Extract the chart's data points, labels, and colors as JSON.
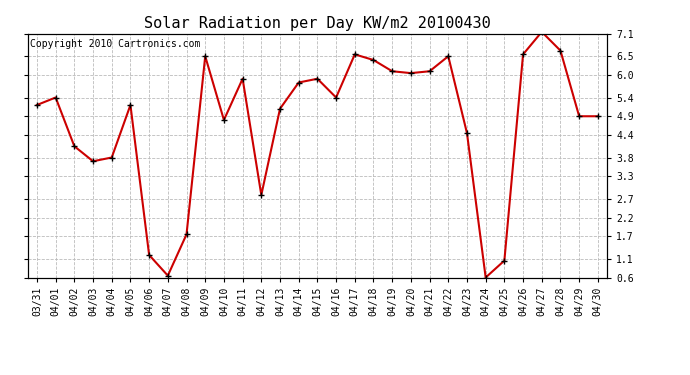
{
  "title": "Solar Radiation per Day KW/m2 20100430",
  "copyright": "Copyright 2010 Cartronics.com",
  "labels": [
    "03/31",
    "04/01",
    "04/02",
    "04/03",
    "04/04",
    "04/05",
    "04/06",
    "04/07",
    "04/08",
    "04/09",
    "04/10",
    "04/11",
    "04/12",
    "04/13",
    "04/14",
    "04/15",
    "04/16",
    "04/17",
    "04/18",
    "04/19",
    "04/20",
    "04/21",
    "04/22",
    "04/23",
    "04/24",
    "04/25",
    "04/26",
    "04/27",
    "04/28",
    "04/29",
    "04/30"
  ],
  "values": [
    5.2,
    5.4,
    4.1,
    3.7,
    3.8,
    5.2,
    1.2,
    0.65,
    1.75,
    6.5,
    4.8,
    5.9,
    2.8,
    5.1,
    5.8,
    5.9,
    5.4,
    6.55,
    6.4,
    6.1,
    6.05,
    6.1,
    6.5,
    4.45,
    0.6,
    1.05,
    6.55,
    7.15,
    6.65,
    4.9,
    4.9
  ],
  "line_color": "#cc0000",
  "marker": "+",
  "marker_color": "#000000",
  "marker_size": 5,
  "line_width": 1.5,
  "ylim_min": 0.6,
  "ylim_max": 7.1,
  "yticks": [
    0.6,
    1.1,
    1.7,
    2.2,
    2.7,
    3.3,
    3.8,
    4.4,
    4.9,
    5.4,
    6.0,
    6.5,
    7.1
  ],
  "background_color": "#ffffff",
  "grid_color": "#bbbbbb",
  "title_fontsize": 11,
  "copyright_fontsize": 7,
  "tick_fontsize": 7,
  "fig_width": 6.9,
  "fig_height": 3.75,
  "dpi": 100
}
